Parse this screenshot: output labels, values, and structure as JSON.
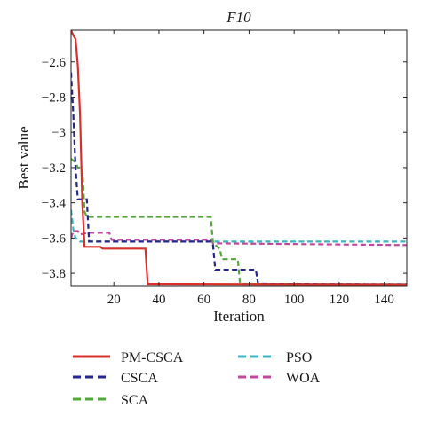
{
  "chart_data": {
    "type": "line",
    "title": "F10",
    "xlabel": "Iteration",
    "ylabel": "Best value",
    "xlim": [
      1,
      150
    ],
    "ylim": [
      -3.87,
      -2.42
    ],
    "grid": false,
    "legend_position": "bottom",
    "x_ticks": [
      {
        "value": 20,
        "label": "20"
      },
      {
        "value": 40,
        "label": "40"
      },
      {
        "value": 60,
        "label": "60"
      },
      {
        "value": 80,
        "label": "80"
      },
      {
        "value": 100,
        "label": "100"
      },
      {
        "value": 120,
        "label": "120"
      },
      {
        "value": 140,
        "label": "140"
      }
    ],
    "y_ticks": [
      {
        "value": -2.6,
        "label": "−2.6"
      },
      {
        "value": -2.8,
        "label": "−2.8"
      },
      {
        "value": -3.0,
        "label": "−3"
      },
      {
        "value": -3.2,
        "label": "−3.2"
      },
      {
        "value": -3.4,
        "label": "−3.4"
      },
      {
        "value": -3.6,
        "label": "−3.6"
      },
      {
        "value": -3.8,
        "label": "−3.8"
      }
    ],
    "series": [
      {
        "name": "PM-CSCA",
        "color": "#d9302a",
        "dash": "solid",
        "points": [
          [
            1,
            -2.42
          ],
          [
            2,
            -2.45
          ],
          [
            3,
            -2.47
          ],
          [
            4,
            -2.62
          ],
          [
            5,
            -2.9
          ],
          [
            6,
            -3.4
          ],
          [
            7,
            -3.65
          ],
          [
            14,
            -3.65
          ],
          [
            15,
            -3.66
          ],
          [
            34,
            -3.66
          ],
          [
            35,
            -3.86
          ],
          [
            150,
            -3.863
          ]
        ]
      },
      {
        "name": "CSCA",
        "color": "#26268f",
        "dash": "dashed",
        "points": [
          [
            1,
            -2.66
          ],
          [
            2,
            -2.9
          ],
          [
            3,
            -3.2
          ],
          [
            4,
            -3.38
          ],
          [
            8,
            -3.38
          ],
          [
            9,
            -3.62
          ],
          [
            63,
            -3.62
          ],
          [
            64,
            -3.64
          ],
          [
            65,
            -3.78
          ],
          [
            83,
            -3.78
          ],
          [
            84,
            -3.86
          ],
          [
            150,
            -3.862
          ]
        ]
      },
      {
        "name": "SCA",
        "color": "#52a83c",
        "dash": "dashed",
        "points": [
          [
            1,
            -3.15
          ],
          [
            2,
            -3.16
          ],
          [
            3,
            -3.17
          ],
          [
            4,
            -3.2
          ],
          [
            6,
            -3.2
          ],
          [
            7,
            -3.45
          ],
          [
            8,
            -3.48
          ],
          [
            63,
            -3.48
          ],
          [
            64,
            -3.63
          ],
          [
            66,
            -3.65
          ],
          [
            67,
            -3.66
          ],
          [
            68,
            -3.72
          ],
          [
            75,
            -3.72
          ],
          [
            76,
            -3.86
          ],
          [
            150,
            -3.862
          ]
        ]
      },
      {
        "name": "PSO",
        "color": "#3fb4c0",
        "dash": "dashed",
        "points": [
          [
            1,
            -3.44
          ],
          [
            2,
            -3.55
          ],
          [
            3,
            -3.6
          ],
          [
            4,
            -3.61
          ],
          [
            5,
            -3.62
          ],
          [
            150,
            -3.62
          ]
        ]
      },
      {
        "name": "WOA",
        "color": "#c0499b",
        "dash": "dashed",
        "points": [
          [
            1,
            -3.6
          ],
          [
            2,
            -3.56
          ],
          [
            4,
            -3.56
          ],
          [
            5,
            -3.58
          ],
          [
            8,
            -3.57
          ],
          [
            18,
            -3.57
          ],
          [
            19,
            -3.61
          ],
          [
            63,
            -3.61
          ],
          [
            64,
            -3.63
          ],
          [
            150,
            -3.64
          ]
        ]
      }
    ]
  }
}
